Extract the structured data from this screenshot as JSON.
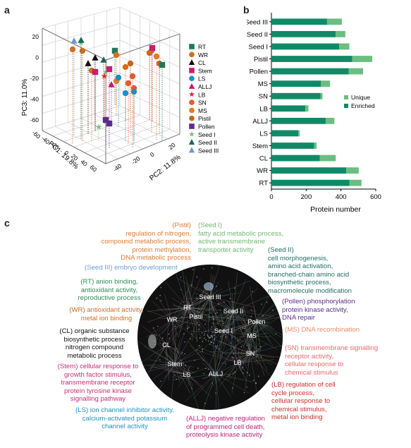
{
  "panels": {
    "a": "a",
    "b": "b",
    "c": "c"
  },
  "colors": {
    "enriched": "#0f8a67",
    "unique": "#6bbd82"
  },
  "chart_data": [
    {
      "type": "scatter",
      "projection": "3d",
      "axes": {
        "x": {
          "label": "PC1: 19.8%",
          "ticks": [
            "-60",
            "-40",
            "-20",
            "0",
            "20",
            "40",
            "60"
          ]
        },
        "y": {
          "label": "PC2: 11.8%",
          "ticks": [
            "-40",
            "-20",
            "0",
            "20"
          ]
        },
        "z": {
          "label": "PC3: 11.0%",
          "ticks": [
            "-60",
            "-40",
            "-20",
            "0",
            "20"
          ]
        }
      },
      "legend_position": "right",
      "legend": [
        {
          "label": "RT",
          "color": "#1d7a55",
          "marker": "square"
        },
        {
          "label": "WR",
          "color": "#d46e1e",
          "marker": "circle"
        },
        {
          "label": "CL",
          "color": "#111111",
          "marker": "triangle"
        },
        {
          "label": "Stem",
          "color": "#c81e6e",
          "marker": "square"
        },
        {
          "label": "LS",
          "color": "#1a8fc8",
          "marker": "circle"
        },
        {
          "label": "ALLJ",
          "color": "#c8147a",
          "marker": "triangle"
        },
        {
          "label": "LB",
          "color": "#d62a2a",
          "marker": "star"
        },
        {
          "label": "SN",
          "color": "#e35a2e",
          "marker": "circle"
        },
        {
          "label": "MS",
          "color": "#e07a2a",
          "marker": "circle"
        },
        {
          "label": "Pistil",
          "color": "#c9651f",
          "marker": "circle"
        },
        {
          "label": "Pollen",
          "color": "#5a2d8c",
          "marker": "square"
        },
        {
          "label": "Seed I",
          "color": "#7cbf7c",
          "marker": "star"
        },
        {
          "label": "Seed II",
          "color": "#22655a",
          "marker": "triangle"
        },
        {
          "label": "Seed III",
          "color": "#6a9ad0",
          "marker": "triangle"
        }
      ]
    },
    {
      "type": "bar",
      "orientation": "horizontal",
      "stacked": true,
      "categories": [
        "Seed III",
        "Seed II",
        "Seed I",
        "Pistil",
        "Pollen",
        "MS",
        "SN",
        "LB",
        "ALLJ",
        "LS",
        "Stem",
        "CL",
        "WR",
        "RT"
      ],
      "series": [
        {
          "name": "Enriched",
          "values": [
            320,
            370,
            390,
            465,
            445,
            285,
            282,
            195,
            312,
            155,
            245,
            278,
            430,
            448
          ]
        },
        {
          "name": "Unique",
          "values": [
            85,
            55,
            58,
            115,
            82,
            52,
            12,
            18,
            50,
            8,
            15,
            92,
            72,
            70
          ]
        }
      ],
      "xlabel": "Protein number",
      "xlim": [
        0,
        600
      ],
      "xticks": [
        "0",
        "200",
        "400",
        "600"
      ],
      "legend_position": "right",
      "grid": false
    }
  ],
  "network": {
    "labels": [
      "Seed III",
      "RT",
      "Pistil",
      "Seed II",
      "WR",
      "Seed I",
      "Pollen",
      "MS",
      "CL",
      "SN",
      "Stem",
      "LB",
      "LS",
      "ALLJ"
    ]
  },
  "annotations": [
    {
      "id": "pistil",
      "tissue": "(Pistil)",
      "lines": [
        "regulation of nitrogen,",
        "compound metabolic process,",
        "protein methylation,",
        "DNA metabolic process"
      ],
      "color": "#e07b30"
    },
    {
      "id": "seed1",
      "tissue": "(Seed I)",
      "lines": [
        "fatty acid metabolic process,",
        "active transmembrane",
        "transporter activity"
      ],
      "color": "#6fb86f"
    },
    {
      "id": "seed2",
      "tissue": "(Seed II)",
      "lines": [
        "cell morphogenesis,",
        "amino acid activation,",
        "branched-chain amino acid",
        "biosynthetic process,",
        "macromolecule modification"
      ],
      "color": "#1f6e63"
    },
    {
      "id": "seed3",
      "tissue": "(Seed III)",
      "lines": [
        "embryo development"
      ],
      "color": "#6b9fd4"
    },
    {
      "id": "rt",
      "tissue": "(RT)",
      "lines": [
        "anion binding,",
        "antioxidant activity,",
        "reproductive process"
      ],
      "color": "#2e8b57"
    },
    {
      "id": "wr",
      "tissue": "(WR)",
      "lines": [
        "antioxidant activity,",
        "metal ion binding"
      ],
      "color": "#d96b1e"
    },
    {
      "id": "cl",
      "tissue": "(CL)",
      "lines": [
        "organic substance",
        "biosynthetic process",
        "nitrogen compound",
        "metabolic process"
      ],
      "color": "#111111"
    },
    {
      "id": "stem",
      "tissue": "(Stem)",
      "lines": [
        "cellular response to",
        "growth factor stimulus,",
        "transmembrane receptor",
        "protein tyrosine kinase",
        "signalling pathway"
      ],
      "color": "#c0307a"
    },
    {
      "id": "ls",
      "tissue": "(LS)",
      "lines": [
        "ion channel inhibitor activity,",
        "calcium-activated potassium",
        "channel activity"
      ],
      "color": "#1f93c4"
    },
    {
      "id": "allj",
      "tissue": "(ALLJ)",
      "lines": [
        "negative regulation",
        "of programmed cell death,",
        "proteolysis kinase activity"
      ],
      "color": "#c01f7a"
    },
    {
      "id": "lb",
      "tissue": "(LB)",
      "lines": [
        "regulation of cell",
        "cycle process,",
        "cellular response to",
        "chemical stimulus,",
        "metal ion binding"
      ],
      "color": "#d62a2a"
    },
    {
      "id": "sn",
      "tissue": "(SN)",
      "lines": [
        "transmembrane signalling",
        "receptor activity,",
        "cellular response to",
        "chemical stimulus"
      ],
      "color": "#e86a6a"
    },
    {
      "id": "ms",
      "tissue": "(MS)",
      "lines": [
        "DNA recombination"
      ],
      "color": "#e88a6a"
    },
    {
      "id": "pollen",
      "tissue": "(Pollen)",
      "lines": [
        "phosphorylation",
        "protein kinase activity,",
        "DNA repair"
      ],
      "color": "#5b2c8c"
    }
  ]
}
